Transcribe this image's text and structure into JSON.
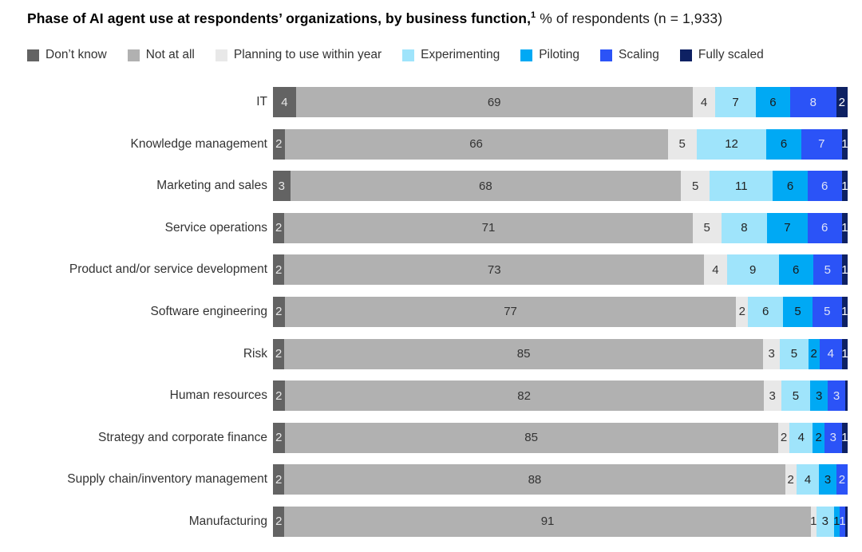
{
  "title": {
    "bold": "Phase of AI agent use at respondents’ organizations, by business function,",
    "superscript": "1",
    "regular": " % of respondents (n = 1,933)"
  },
  "legend": [
    {
      "label": "Don’t know",
      "color": "#636363"
    },
    {
      "label": "Not at all",
      "color": "#b1b1b1"
    },
    {
      "label": "Planning to use within year",
      "color": "#e8e8e8"
    },
    {
      "label": "Experimenting",
      "color": "#9fe4fb"
    },
    {
      "label": "Piloting",
      "color": "#00a9f4"
    },
    {
      "label": "Scaling",
      "color": "#2b53f7"
    },
    {
      "label": "Fully scaled",
      "color": "#0e2163"
    }
  ],
  "chart_data": {
    "type": "bar",
    "stacked": true,
    "orientation": "horizontal",
    "unit": "% of respondents",
    "sample_note": "n = 1,933",
    "legend_position": "top",
    "phases": [
      "Don’t know",
      "Not at all",
      "Planning to use within year",
      "Experimenting",
      "Piloting",
      "Scaling",
      "Fully scaled"
    ],
    "phase_colors": [
      "#636363",
      "#b1b1b1",
      "#e8e8e8",
      "#9fe4fb",
      "#00a9f4",
      "#2b53f7",
      "#0e2163"
    ],
    "phase_label_colors": [
      "#e9e9e9",
      "#333333",
      "#333333",
      "#222222",
      "#1a1a1a",
      "#dde2f8",
      "#ffffff"
    ],
    "categories": [
      "IT",
      "Knowledge management",
      "Marketing and sales",
      "Service operations",
      "Product and/or service development",
      "Software engineering",
      "Risk",
      "Human resources",
      "Strategy and corporate finance",
      "Supply chain/inventory management",
      "Manufacturing"
    ],
    "rows": [
      {
        "category": "IT",
        "values": [
          4,
          69,
          4,
          7,
          6,
          8,
          2
        ],
        "labels": [
          "4",
          "69",
          "4",
          "7",
          "6",
          "8",
          "2"
        ]
      },
      {
        "category": "Knowledge management",
        "values": [
          2,
          66,
          5,
          12,
          6,
          7,
          1
        ],
        "labels": [
          "2",
          "66",
          "5",
          "12",
          "6",
          "7",
          "1"
        ]
      },
      {
        "category": "Marketing and sales",
        "values": [
          3,
          68,
          5,
          11,
          6,
          6,
          1
        ],
        "labels": [
          "3",
          "68",
          "5",
          "11",
          "6",
          "6",
          "1"
        ]
      },
      {
        "category": "Service operations",
        "values": [
          2,
          71,
          5,
          8,
          7,
          6,
          1
        ],
        "labels": [
          "2",
          "71",
          "5",
          "8",
          "7",
          "6",
          "1"
        ]
      },
      {
        "category": "Product and/or service development",
        "values": [
          2,
          73,
          4,
          9,
          6,
          5,
          1
        ],
        "labels": [
          "2",
          "73",
          "4",
          "9",
          "6",
          "5",
          "1"
        ]
      },
      {
        "category": "Software engineering",
        "values": [
          2,
          77,
          2,
          6,
          5,
          5,
          1
        ],
        "labels": [
          "2",
          "77",
          "2",
          "6",
          "5",
          "5",
          "1"
        ]
      },
      {
        "category": "Risk",
        "values": [
          2,
          85,
          3,
          5,
          2,
          4,
          1
        ],
        "labels": [
          "2",
          "85",
          "3",
          "5",
          "2",
          "4",
          "1"
        ]
      },
      {
        "category": "Human resources",
        "values": [
          2,
          82,
          3,
          5,
          3,
          3,
          0.4
        ],
        "labels": [
          "2",
          "82",
          "3",
          "5",
          "3",
          "3",
          ""
        ]
      },
      {
        "category": "Strategy and corporate finance",
        "values": [
          2,
          85,
          2,
          4,
          2,
          3,
          1
        ],
        "labels": [
          "2",
          "85",
          "2",
          "4",
          "2",
          "3",
          "1"
        ]
      },
      {
        "category": "Supply chain/inventory management",
        "values": [
          2,
          88,
          2,
          4,
          3,
          2,
          0
        ],
        "labels": [
          "2",
          "88",
          "2",
          "4",
          "3",
          "2",
          ""
        ]
      },
      {
        "category": "Manufacturing",
        "values": [
          2,
          91,
          1,
          3,
          1,
          1,
          0.4
        ],
        "labels": [
          "2",
          "91",
          "1",
          "3",
          "1",
          "1",
          ""
        ]
      }
    ]
  }
}
